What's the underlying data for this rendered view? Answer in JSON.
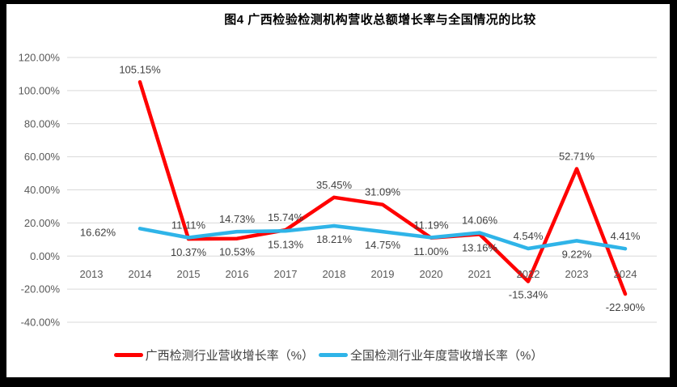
{
  "title": "图4 广西检验检测机构营收总额增长率与全国情况的比较",
  "colors": {
    "guangxi_red": "#FF0000",
    "national_blue": "#2FB4E8",
    "gridline": "#D9D9D9",
    "axis_text": "#595959",
    "data_label": "#404040",
    "frame": "#000000",
    "background": "#FFFFFF"
  },
  "chart_data": {
    "type": "line",
    "title": "图4 广西检验检测机构营收总额增长率与全国情况的比较",
    "categories": [
      "2013",
      "2014",
      "2015",
      "2016",
      "2017",
      "2018",
      "2019",
      "2020",
      "2021",
      "2022",
      "2023",
      "2024"
    ],
    "series": [
      {
        "name": "广西检测行业营收增长率（%）",
        "color": "#FF0000",
        "values": [
          null,
          105.15,
          10.37,
          10.53,
          15.74,
          35.45,
          31.09,
          11.0,
          13.16,
          -15.34,
          52.71,
          -22.9
        ],
        "labels": [
          "",
          "105.15%",
          "10.37%",
          "10.53%",
          "15.74%",
          "35.45%",
          "31.09%",
          "11.00%",
          "13.16%",
          "-15.34%",
          "52.71%",
          "-22.90%"
        ],
        "label_pos": [
          "",
          "above",
          "below",
          "below",
          "above",
          "above",
          "above",
          "below",
          "below",
          "below",
          "above",
          "below"
        ]
      },
      {
        "name": "全国检测行业年度营收增长率（%）",
        "color": "#2FB4E8",
        "values": [
          null,
          16.62,
          11.11,
          14.73,
          15.13,
          18.21,
          14.75,
          11.19,
          14.06,
          4.54,
          9.22,
          4.41
        ],
        "labels": [
          "",
          "16.62%",
          "11.11%",
          "14.73%",
          "15.13%",
          "18.21%",
          "14.75%",
          "11.19%",
          "14.06%",
          "4.54%",
          "9.22%",
          "4.41%"
        ],
        "label_pos": [
          "",
          "left",
          "above",
          "above",
          "below",
          "below",
          "below",
          "above",
          "above",
          "above",
          "below",
          "above"
        ]
      }
    ],
    "y_axis": {
      "min": -40,
      "max": 120,
      "tick_values": [
        120,
        100,
        80,
        60,
        40,
        20,
        0,
        -20,
        -40
      ],
      "tick_labels": [
        "120.00%",
        "100.00%",
        "80.00%",
        "60.00%",
        "40.00%",
        "20.00%",
        "0.00%",
        "-20.00%",
        "-40.00%"
      ]
    },
    "grid": true,
    "legend_position": "bottom"
  },
  "legend": {
    "items": [
      {
        "label": "广西检测行业营收增长率（%）",
        "color": "#FF0000"
      },
      {
        "label": "全国检测行业年度营收增长率（%）",
        "color": "#2FB4E8"
      }
    ]
  }
}
